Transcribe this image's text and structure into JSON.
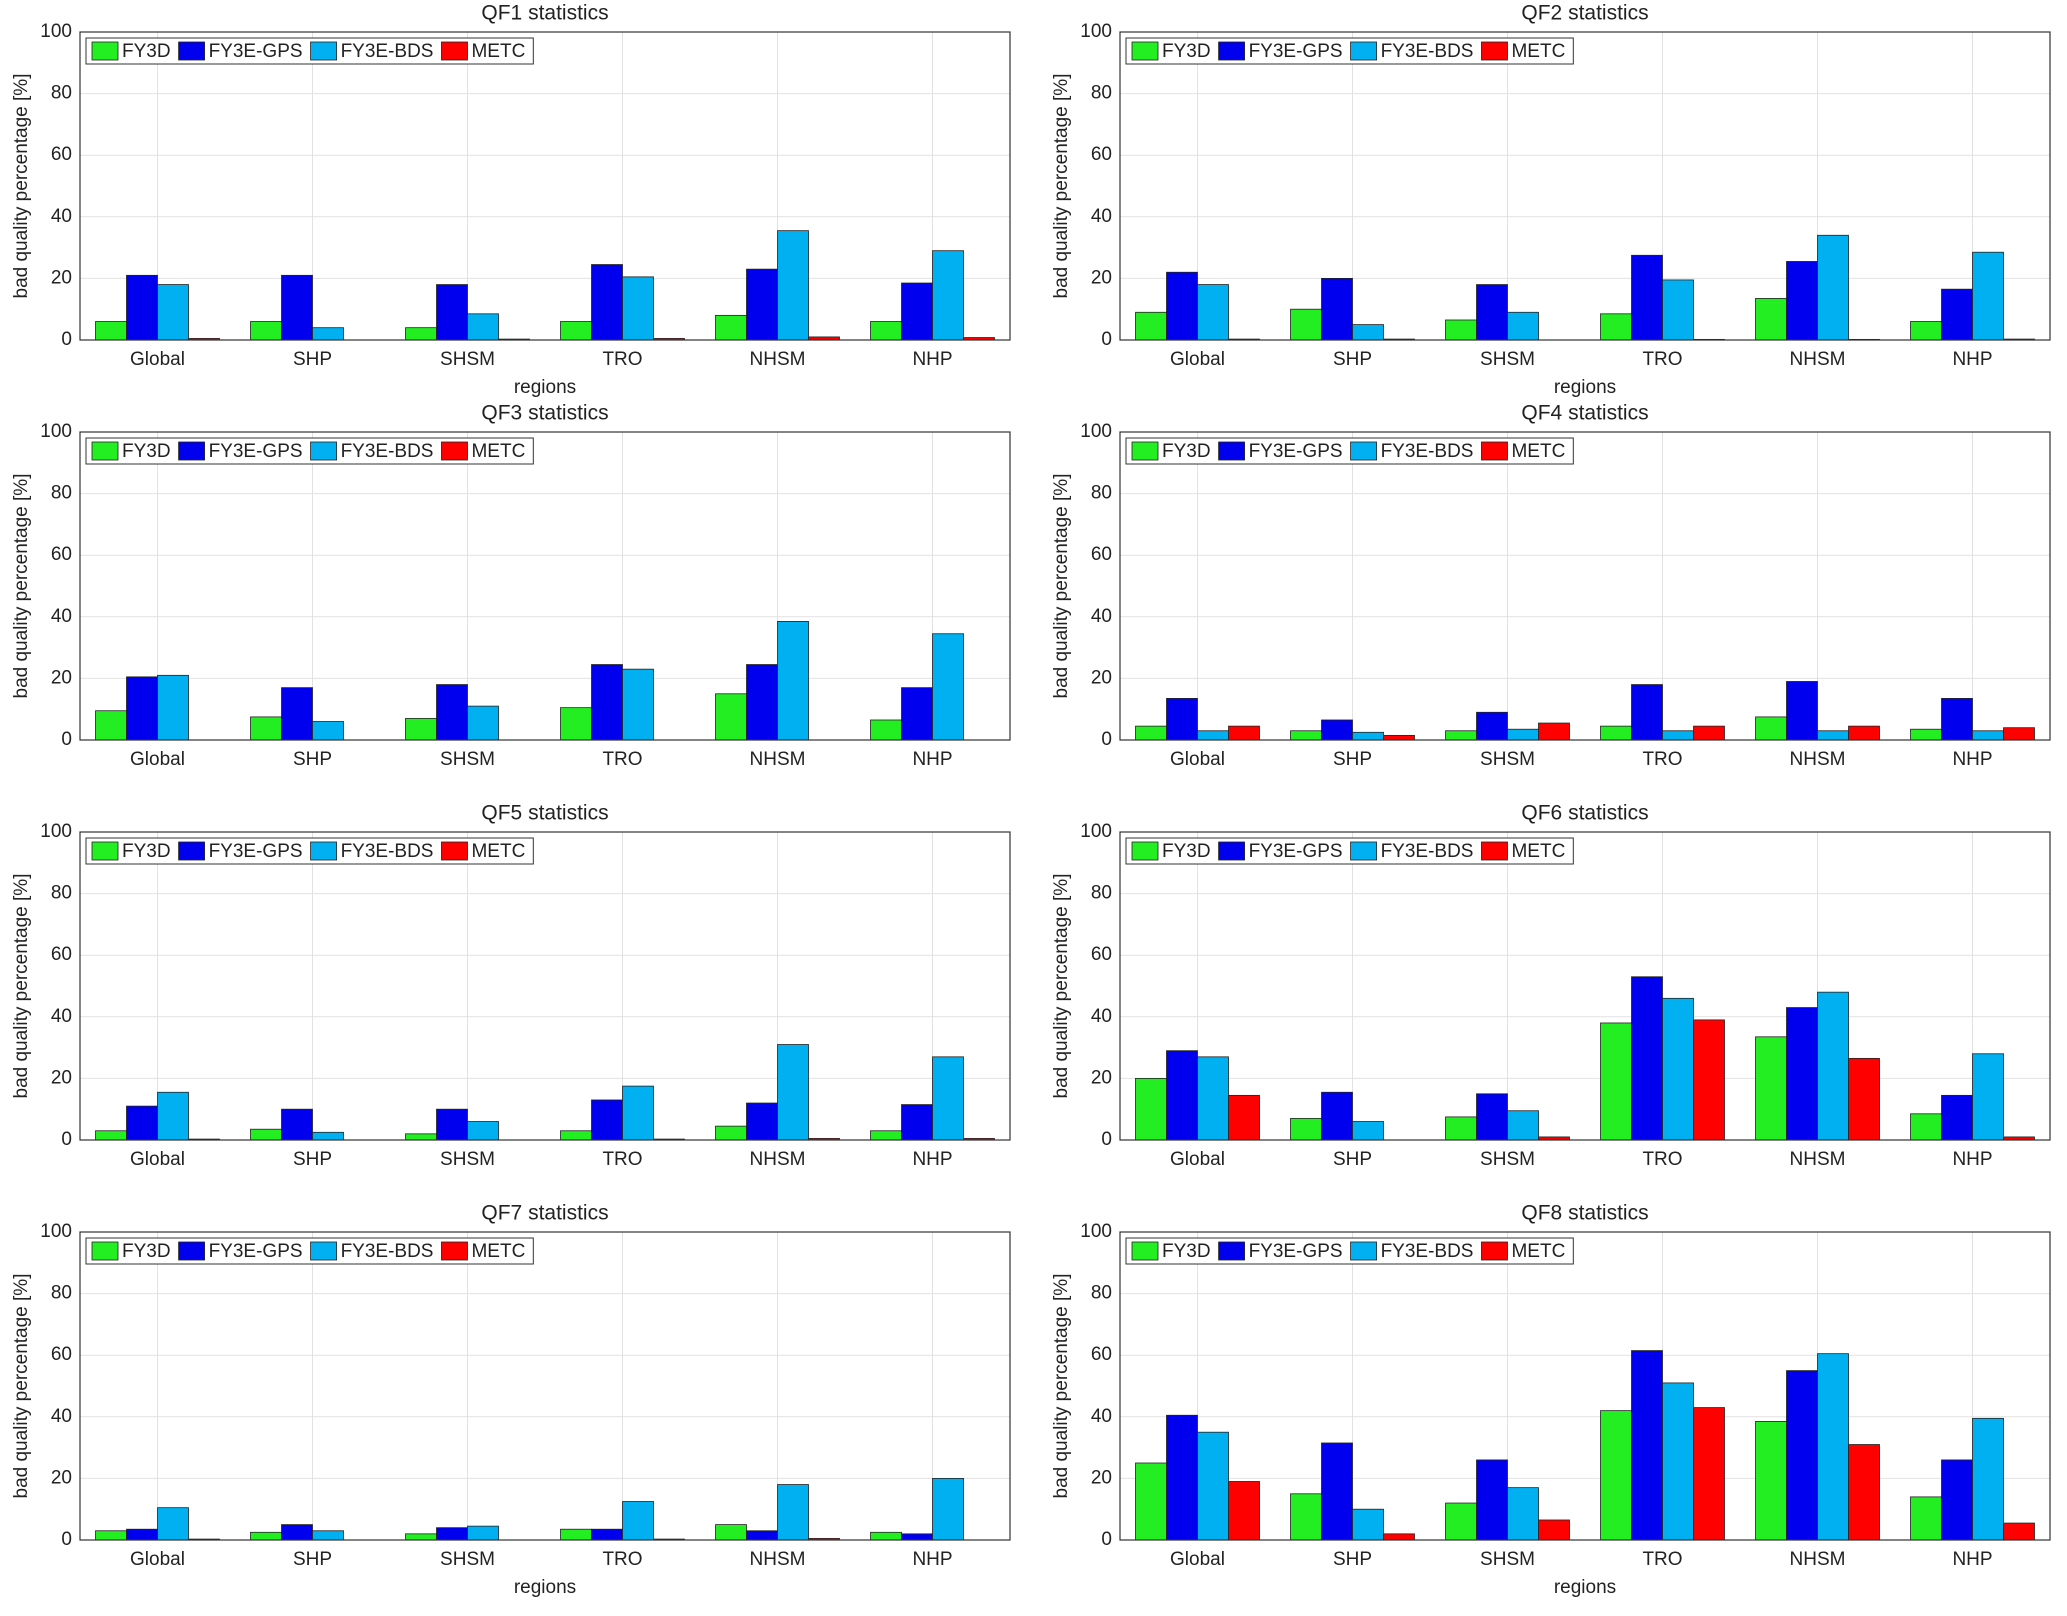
{
  "chart_data": [
    {
      "type": "bar",
      "title": "QF1 statistics",
      "xlabel": "regions",
      "ylabel": "bad quality percentage [%]",
      "categories": [
        "Global",
        "SHP",
        "SHSM",
        "TRO",
        "NHSM",
        "NHP"
      ],
      "series": [
        {
          "name": "FY3D",
          "color": "#22ee22",
          "values": [
            6,
            6,
            4,
            6,
            8,
            6
          ]
        },
        {
          "name": "FY3E-GPS",
          "color": "#0000ee",
          "values": [
            21,
            21,
            18,
            24.5,
            23,
            18.5
          ]
        },
        {
          "name": "FY3E-BDS",
          "color": "#00b0f0",
          "values": [
            18,
            4,
            8.5,
            20.5,
            35.5,
            29
          ]
        },
        {
          "name": "METC",
          "color": "#ff0000",
          "values": [
            0.5,
            0,
            0.3,
            0.5,
            1,
            0.8
          ]
        }
      ],
      "ylim": [
        0,
        100
      ],
      "yticks": [
        0,
        20,
        40,
        60,
        80,
        100
      ],
      "grid": true,
      "legend": "upper left"
    },
    {
      "type": "bar",
      "title": "QF2 statistics",
      "xlabel": "regions",
      "ylabel": "bad quality percentage [%]",
      "categories": [
        "Global",
        "SHP",
        "SHSM",
        "TRO",
        "NHSM",
        "NHP"
      ],
      "series": [
        {
          "name": "FY3D",
          "color": "#22ee22",
          "values": [
            9,
            10,
            6.5,
            8.5,
            13.5,
            6
          ]
        },
        {
          "name": "FY3E-GPS",
          "color": "#0000ee",
          "values": [
            22,
            20,
            18,
            27.5,
            25.5,
            16.5
          ]
        },
        {
          "name": "FY3E-BDS",
          "color": "#00b0f0",
          "values": [
            18,
            5,
            9,
            19.5,
            34,
            28.5
          ]
        },
        {
          "name": "METC",
          "color": "#ff0000",
          "values": [
            0.3,
            0.3,
            0,
            0.2,
            0.2,
            0.3
          ]
        }
      ],
      "ylim": [
        0,
        100
      ],
      "yticks": [
        0,
        20,
        40,
        60,
        80,
        100
      ],
      "grid": true,
      "legend": "upper left"
    },
    {
      "type": "bar",
      "title": "QF3 statistics",
      "ylabel": "bad quality percentage [%]",
      "categories": [
        "Global",
        "SHP",
        "SHSM",
        "TRO",
        "NHSM",
        "NHP"
      ],
      "series": [
        {
          "name": "FY3D",
          "color": "#22ee22",
          "values": [
            9.5,
            7.5,
            7,
            10.5,
            15,
            6.5
          ]
        },
        {
          "name": "FY3E-GPS",
          "color": "#0000ee",
          "values": [
            20.5,
            17,
            18,
            24.5,
            24.5,
            17
          ]
        },
        {
          "name": "FY3E-BDS",
          "color": "#00b0f0",
          "values": [
            21,
            6,
            11,
            23,
            38.5,
            34.5
          ]
        },
        {
          "name": "METC",
          "color": "#ff0000",
          "values": [
            0,
            0,
            0,
            0,
            0,
            0
          ]
        }
      ],
      "ylim": [
        0,
        100
      ],
      "yticks": [
        0,
        20,
        40,
        60,
        80,
        100
      ],
      "grid": true,
      "legend": "upper left"
    },
    {
      "type": "bar",
      "title": "QF4 statistics",
      "ylabel": "bad quality percentage [%]",
      "categories": [
        "Global",
        "SHP",
        "SHSM",
        "TRO",
        "NHSM",
        "NHP"
      ],
      "series": [
        {
          "name": "FY3D",
          "color": "#22ee22",
          "values": [
            4.5,
            3,
            3,
            4.5,
            7.5,
            3.5
          ]
        },
        {
          "name": "FY3E-GPS",
          "color": "#0000ee",
          "values": [
            13.5,
            6.5,
            9,
            18,
            19,
            13.5
          ]
        },
        {
          "name": "FY3E-BDS",
          "color": "#00b0f0",
          "values": [
            3,
            2.5,
            3.5,
            3,
            3,
            3
          ]
        },
        {
          "name": "METC",
          "color": "#ff0000",
          "values": [
            4.5,
            1.5,
            5.5,
            4.5,
            4.5,
            4
          ]
        }
      ],
      "ylim": [
        0,
        100
      ],
      "yticks": [
        0,
        20,
        40,
        60,
        80,
        100
      ],
      "grid": true,
      "legend": "upper left"
    },
    {
      "type": "bar",
      "title": "QF5 statistics",
      "ylabel": "bad quality percentage [%]",
      "categories": [
        "Global",
        "SHP",
        "SHSM",
        "TRO",
        "NHSM",
        "NHP"
      ],
      "series": [
        {
          "name": "FY3D",
          "color": "#22ee22",
          "values": [
            3,
            3.5,
            2,
            3,
            4.5,
            3
          ]
        },
        {
          "name": "FY3E-GPS",
          "color": "#0000ee",
          "values": [
            11,
            10,
            10,
            13,
            12,
            11.5
          ]
        },
        {
          "name": "FY3E-BDS",
          "color": "#00b0f0",
          "values": [
            15.5,
            2.5,
            6,
            17.5,
            31,
            27
          ]
        },
        {
          "name": "METC",
          "color": "#ff0000",
          "values": [
            0.3,
            0,
            0,
            0.3,
            0.5,
            0.5
          ]
        }
      ],
      "ylim": [
        0,
        100
      ],
      "yticks": [
        0,
        20,
        40,
        60,
        80,
        100
      ],
      "grid": true,
      "legend": "upper left"
    },
    {
      "type": "bar",
      "title": "QF6 statistics",
      "ylabel": "bad quality percentage [%]",
      "categories": [
        "Global",
        "SHP",
        "SHSM",
        "TRO",
        "NHSM",
        "NHP"
      ],
      "series": [
        {
          "name": "FY3D",
          "color": "#22ee22",
          "values": [
            20,
            7,
            7.5,
            38,
            33.5,
            8.5
          ]
        },
        {
          "name": "FY3E-GPS",
          "color": "#0000ee",
          "values": [
            29,
            15.5,
            15,
            53,
            43,
            14.5
          ]
        },
        {
          "name": "FY3E-BDS",
          "color": "#00b0f0",
          "values": [
            27,
            6,
            9.5,
            46,
            48,
            28
          ]
        },
        {
          "name": "METC",
          "color": "#ff0000",
          "values": [
            14.5,
            0,
            1,
            39,
            26.5,
            1
          ]
        }
      ],
      "ylim": [
        0,
        100
      ],
      "yticks": [
        0,
        20,
        40,
        60,
        80,
        100
      ],
      "grid": true,
      "legend": "upper left"
    },
    {
      "type": "bar",
      "title": "QF7 statistics",
      "xlabel": "regions",
      "ylabel": "bad quality percentage [%]",
      "categories": [
        "Global",
        "SHP",
        "SHSM",
        "TRO",
        "NHSM",
        "NHP"
      ],
      "series": [
        {
          "name": "FY3D",
          "color": "#22ee22",
          "values": [
            3,
            2.5,
            2,
            3.5,
            5,
            2.5
          ]
        },
        {
          "name": "FY3E-GPS",
          "color": "#0000ee",
          "values": [
            3.5,
            5,
            4,
            3.5,
            3,
            2
          ]
        },
        {
          "name": "FY3E-BDS",
          "color": "#00b0f0",
          "values": [
            10.5,
            3,
            4.5,
            12.5,
            18,
            20
          ]
        },
        {
          "name": "METC",
          "color": "#ff0000",
          "values": [
            0.3,
            0,
            0,
            0.3,
            0.5,
            0
          ]
        }
      ],
      "ylim": [
        0,
        100
      ],
      "yticks": [
        0,
        20,
        40,
        60,
        80,
        100
      ],
      "grid": true,
      "legend": "upper left"
    },
    {
      "type": "bar",
      "title": "QF8 statistics",
      "xlabel": "regions",
      "ylabel": "bad quality percentage [%]",
      "categories": [
        "Global",
        "SHP",
        "SHSM",
        "TRO",
        "NHSM",
        "NHP"
      ],
      "series": [
        {
          "name": "FY3D",
          "color": "#22ee22",
          "values": [
            25,
            15,
            12,
            42,
            38.5,
            14
          ]
        },
        {
          "name": "FY3E-GPS",
          "color": "#0000ee",
          "values": [
            40.5,
            31.5,
            26,
            61.5,
            55,
            26
          ]
        },
        {
          "name": "FY3E-BDS",
          "color": "#00b0f0",
          "values": [
            35,
            10,
            17,
            51,
            60.5,
            39.5
          ]
        },
        {
          "name": "METC",
          "color": "#ff0000",
          "values": [
            19,
            2,
            6.5,
            43,
            31,
            5.5
          ]
        }
      ],
      "ylim": [
        0,
        100
      ],
      "yticks": [
        0,
        20,
        40,
        60,
        80,
        100
      ],
      "grid": true,
      "legend": "upper left"
    }
  ]
}
